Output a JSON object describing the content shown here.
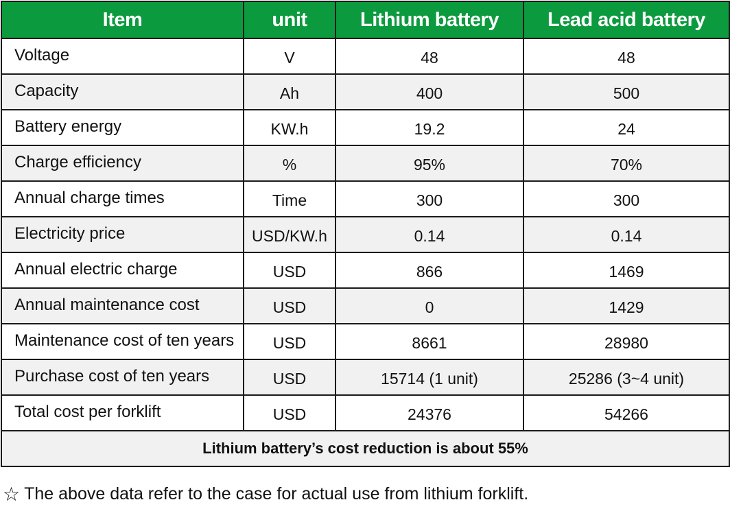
{
  "header": {
    "item": "Item",
    "unit": "unit",
    "lithium": "Lithium battery",
    "lead_acid": "Lead acid  battery"
  },
  "rows": [
    {
      "item": "Voltage",
      "unit": "V",
      "lithium": "48",
      "lead_acid": "48"
    },
    {
      "item": "Capacity",
      "unit": "Ah",
      "lithium": "400",
      "lead_acid": "500"
    },
    {
      "item": "Battery energy",
      "unit": "KW.h",
      "lithium": "19.2",
      "lead_acid": "24"
    },
    {
      "item": "Charge efficiency",
      "unit": "%",
      "lithium": "95%",
      "lead_acid": "70%"
    },
    {
      "item": "Annual charge times",
      "unit": "Time",
      "lithium": "300",
      "lead_acid": "300"
    },
    {
      "item": "Electricity price",
      "unit": "USD/KW.h",
      "lithium": "0.14",
      "lead_acid": "0.14"
    },
    {
      "item": "Annual electric charge",
      "unit": "USD",
      "lithium": "866",
      "lead_acid": "1469"
    },
    {
      "item": "Annual maintenance cost",
      "unit": "USD",
      "lithium": "0",
      "lead_acid": "1429"
    },
    {
      "item": "Maintenance cost of ten years",
      "unit": "USD",
      "lithium": "8661",
      "lead_acid": "28980"
    },
    {
      "item": "Purchase cost of ten years",
      "unit": "USD",
      "lithium": "15714 (1 unit)",
      "lead_acid": "25286 (3~4 unit)"
    },
    {
      "item": "Total cost per forklift",
      "unit": "USD",
      "lithium": "24376",
      "lead_acid": "54266"
    }
  ],
  "summary": "Lithium battery’s cost reduction is about 55%",
  "footnote": {
    "icon": "star-outline-icon",
    "text": "The above data refer to the case for actual use from lithium forklift."
  },
  "colors": {
    "header_bg": "#0c9a3e",
    "header_text": "#ffffff",
    "stripe": "#f1f1f1",
    "border": "#1a1a1a"
  }
}
